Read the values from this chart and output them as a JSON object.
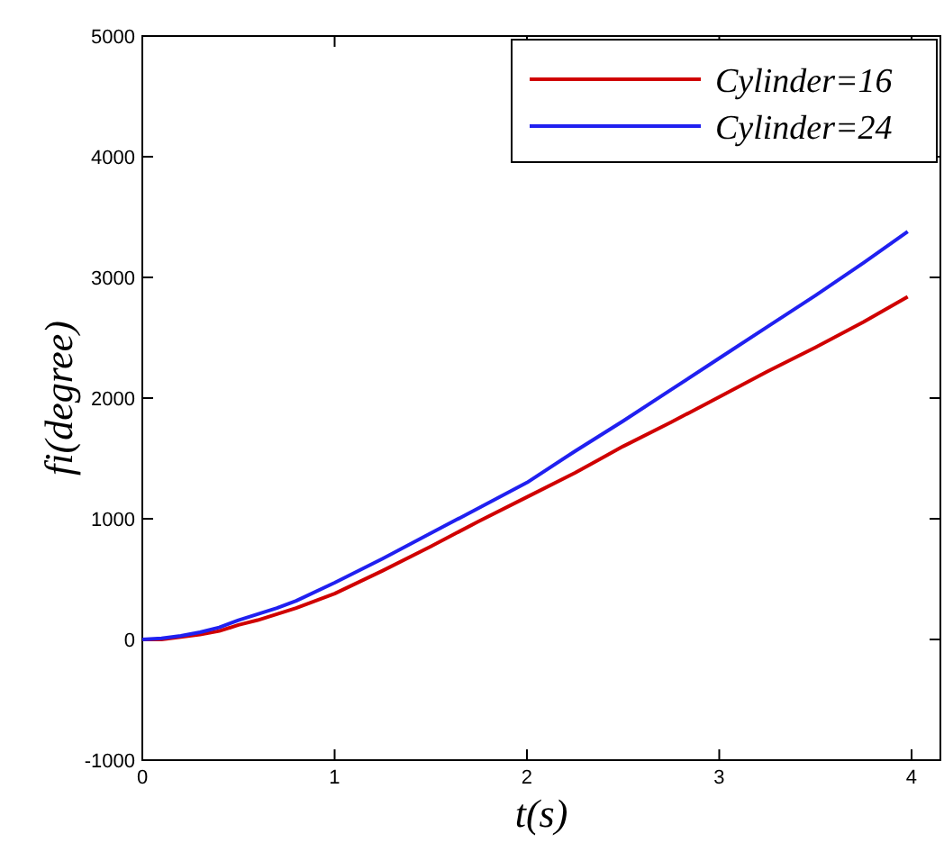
{
  "chart_data": {
    "type": "line",
    "xlabel": "t(s)",
    "ylabel": "fi(degree)",
    "xlim": [
      0,
      4.15
    ],
    "xticks": [
      0,
      1,
      2,
      3,
      4
    ],
    "ylim": [
      -1000,
      5000
    ],
    "yticks": [
      -1000,
      0,
      1000,
      2000,
      3000,
      4000,
      5000
    ],
    "grid": false,
    "legend": "top right",
    "marker": "none",
    "line_style": "solid",
    "series": [
      {
        "name": "Cylinder=16",
        "color": "#d00000",
        "x": [
          0,
          0.1,
          0.2,
          0.3,
          0.4,
          0.5,
          0.6,
          0.7,
          0.8,
          1,
          1.25,
          1.5,
          1.75,
          2,
          2.25,
          2.5,
          2.75,
          3,
          3.25,
          3.5,
          3.75,
          3.98
        ],
        "values": [
          0,
          0,
          20,
          40,
          70,
          120,
          160,
          210,
          260,
          380,
          570,
          770,
          980,
          1180,
          1380,
          1600,
          1800,
          2010,
          2220,
          2420,
          2630,
          2840
        ]
      },
      {
        "name": "Cylinder=24",
        "color": "#2020f0",
        "x": [
          0,
          0.1,
          0.2,
          0.3,
          0.4,
          0.5,
          0.6,
          0.7,
          0.8,
          1,
          1.25,
          1.5,
          1.75,
          2,
          2.25,
          2.5,
          2.75,
          3,
          3.25,
          3.5,
          3.75,
          3.98
        ],
        "values": [
          0,
          10,
          30,
          60,
          100,
          160,
          210,
          260,
          320,
          470,
          670,
          880,
          1090,
          1300,
          1560,
          1810,
          2070,
          2330,
          2590,
          2850,
          3120,
          3380
        ]
      }
    ]
  }
}
